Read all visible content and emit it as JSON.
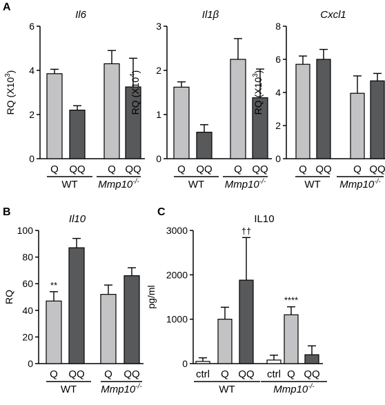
{
  "figure": {
    "labels": [
      "A",
      "B",
      "C"
    ]
  },
  "colors": {
    "light": "#c3c3c5",
    "dark": "#58595b",
    "stroke": "#000000"
  },
  "chart_data": [
    {
      "panel": "A",
      "type": "bar",
      "title": "Il6",
      "title_italic": true,
      "ylabel": "RQ (X10^3)",
      "ylim": [
        0,
        6
      ],
      "yticks": [
        0,
        2,
        4,
        6
      ],
      "categories": [
        "Q",
        "QQ",
        "Q",
        "QQ"
      ],
      "groups": [
        {
          "label": "WT",
          "italic": false
        },
        {
          "label": "Mmp10-/-",
          "italic": true
        }
      ],
      "bars": [
        {
          "value": 3.85,
          "err": 0.2,
          "shade": "light"
        },
        {
          "value": 2.2,
          "err": 0.2,
          "shade": "dark"
        },
        {
          "value": 4.3,
          "err": 0.6,
          "shade": "light"
        },
        {
          "value": 3.25,
          "err": 1.3,
          "shade": "dark"
        }
      ]
    },
    {
      "panel": "A",
      "type": "bar",
      "title": "Il1β",
      "title_italic": true,
      "ylabel": "RQ (X10^4)",
      "ylim": [
        0,
        3
      ],
      "yticks": [
        0,
        1,
        2,
        3
      ],
      "categories": [
        "Q",
        "QQ",
        "Q",
        "QQ"
      ],
      "groups": [
        {
          "label": "WT",
          "italic": false
        },
        {
          "label": "Mmp10-/-",
          "italic": true
        }
      ],
      "bars": [
        {
          "value": 1.62,
          "err": 0.12,
          "shade": "light"
        },
        {
          "value": 0.6,
          "err": 0.17,
          "shade": "dark"
        },
        {
          "value": 2.25,
          "err": 0.47,
          "shade": "light"
        },
        {
          "value": 1.38,
          "err": 0.65,
          "shade": "dark"
        }
      ]
    },
    {
      "panel": "A",
      "type": "bar",
      "title": "Cxcl1",
      "title_italic": true,
      "ylabel": "RQ (X10^3)",
      "ylim": [
        0,
        8
      ],
      "yticks": [
        0,
        2,
        4,
        6,
        8
      ],
      "categories": [
        "Q",
        "QQ",
        "Q",
        "QQ"
      ],
      "groups": [
        {
          "label": "WT",
          "italic": false
        },
        {
          "label": "Mmp10-/-",
          "italic": true
        }
      ],
      "bars": [
        {
          "value": 5.7,
          "err": 0.5,
          "shade": "light"
        },
        {
          "value": 6.0,
          "err": 0.6,
          "shade": "dark"
        },
        {
          "value": 3.95,
          "err": 1.05,
          "shade": "light"
        },
        {
          "value": 4.7,
          "err": 0.45,
          "shade": "dark"
        }
      ]
    },
    {
      "panel": "B",
      "type": "bar",
      "title": "Il10",
      "title_italic": true,
      "ylabel": "RQ",
      "ylim": [
        0,
        100
      ],
      "yticks": [
        0,
        20,
        40,
        60,
        80,
        100
      ],
      "categories": [
        "Q",
        "QQ",
        "Q",
        "QQ"
      ],
      "groups": [
        {
          "label": "WT",
          "italic": false
        },
        {
          "label": "Mmp10-/-",
          "italic": true
        }
      ],
      "bars": [
        {
          "value": 47,
          "err": 7,
          "shade": "light",
          "annot": "**"
        },
        {
          "value": 87,
          "err": 7,
          "shade": "dark"
        },
        {
          "value": 52,
          "err": 7,
          "shade": "light"
        },
        {
          "value": 66,
          "err": 6,
          "shade": "dark"
        }
      ]
    },
    {
      "panel": "C",
      "type": "bar",
      "title": "IL10",
      "title_italic": false,
      "ylabel": "pg/ml",
      "ylim": [
        0,
        3000
      ],
      "yticks": [
        0,
        1000,
        2000,
        3000
      ],
      "categories": [
        "ctrl",
        "Q",
        "QQ",
        "ctrl",
        "Q",
        "QQ"
      ],
      "groups": [
        {
          "label": "WT",
          "italic": false
        },
        {
          "label": "Mmp10-/-",
          "italic": true
        }
      ],
      "bars": [
        {
          "value": 50,
          "err": 80,
          "shade": "white"
        },
        {
          "value": 1000,
          "err": 270,
          "shade": "light"
        },
        {
          "value": 1880,
          "err": 960,
          "shade": "dark",
          "annot": "††"
        },
        {
          "value": 80,
          "err": 110,
          "shade": "white"
        },
        {
          "value": 1100,
          "err": 180,
          "shade": "light",
          "annot": "****"
        },
        {
          "value": 200,
          "err": 200,
          "shade": "dark"
        }
      ]
    }
  ]
}
